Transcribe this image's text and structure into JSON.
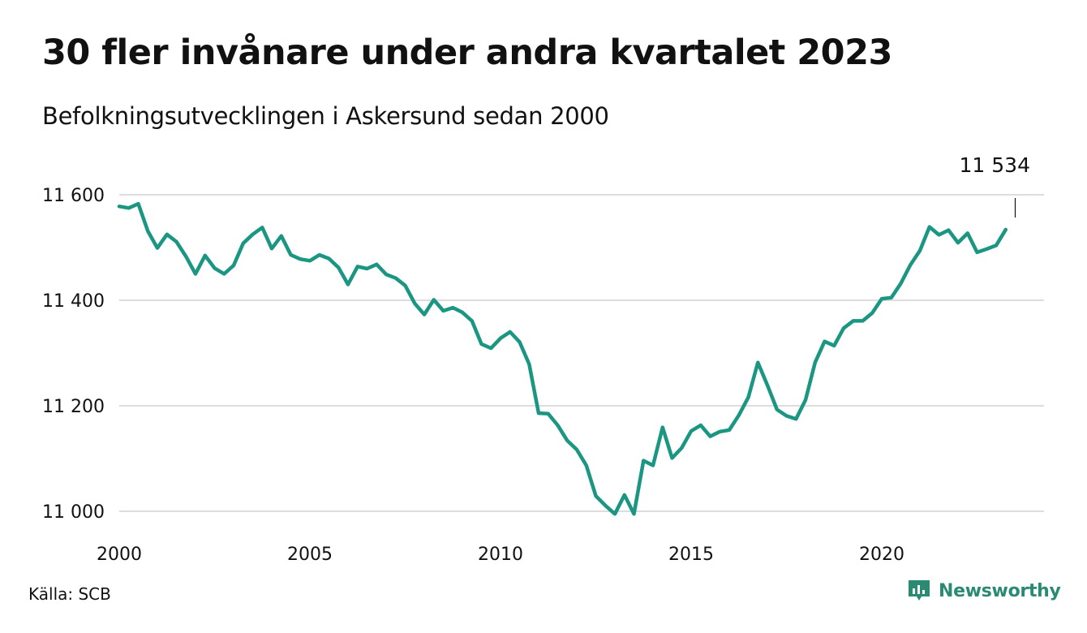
{
  "header": {
    "title": "30 fler invånare under andra kvartalet 2023",
    "subtitle": "Befolkningsutvecklingen i Askersund sedan 2000"
  },
  "footer": {
    "source": "Källa: SCB",
    "brand": "Newsworthy"
  },
  "colors": {
    "line": "#1a9683",
    "grid": "#dddddd",
    "brand": "#2a8a74"
  },
  "chart_data": {
    "type": "line",
    "title": "30 fler invånare under andra kvartalet 2023",
    "subtitle": "Befolkningsutvecklingen i Askersund sedan 2000",
    "xlabel": "",
    "ylabel": "",
    "xlim": [
      2000,
      2024
    ],
    "ylim": [
      10990,
      11600
    ],
    "x_ticks": [
      2000,
      2005,
      2010,
      2015,
      2020
    ],
    "x_tick_labels": [
      "2000",
      "2005",
      "2010",
      "2015",
      "2020"
    ],
    "y_ticks": [
      11000,
      11200,
      11400,
      11600
    ],
    "y_tick_labels": [
      "11 000",
      "11 200",
      "11 400",
      "11 600"
    ],
    "grid": "horizontal",
    "annotation": {
      "label": "11 534",
      "x": 2023.5,
      "y": 11534
    },
    "series": [
      {
        "x_start_year": 2000,
        "interval": "quarter",
        "values": [
          11578,
          11575,
          11583,
          11531,
          11499,
          11525,
          11511,
          11483,
          11450,
          11485,
          11461,
          11450,
          11466,
          11508,
          11525,
          11538,
          11498,
          11522,
          11486,
          11478,
          11475,
          11486,
          11479,
          11462,
          11430,
          11464,
          11460,
          11468,
          11449,
          11442,
          11428,
          11394,
          11373,
          11401,
          11380,
          11386,
          11377,
          11361,
          11317,
          11309,
          11328,
          11340,
          11321,
          11279,
          11186,
          11185,
          11163,
          11134,
          11117,
          11087,
          11029,
          11011,
          10995,
          11031,
          10995,
          11096,
          11087,
          11159,
          11101,
          11120,
          11152,
          11163,
          11142,
          11151,
          11154,
          11182,
          11216,
          11282,
          11239,
          11193,
          11181,
          11175,
          11211,
          11282,
          11322,
          11314,
          11347,
          11361,
          11361,
          11376,
          11403,
          11405,
          11432,
          11467,
          11494,
          11539,
          11524,
          11533,
          11509,
          11527,
          11491,
          11497,
          11504,
          11534
        ]
      }
    ]
  }
}
